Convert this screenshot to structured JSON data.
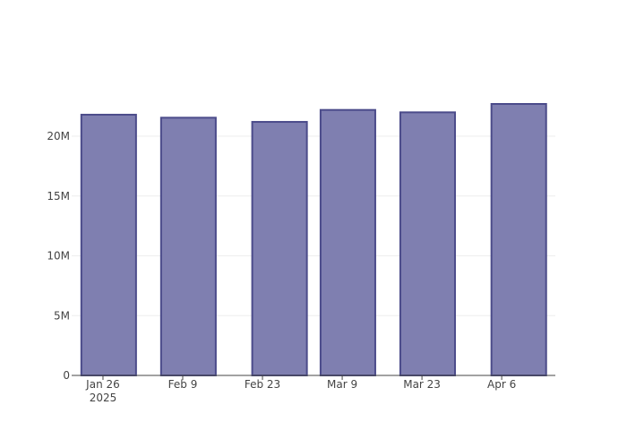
{
  "chart_data": {
    "type": "bar",
    "x": [
      "2025-01-27",
      "2025-02-10",
      "2025-02-26",
      "2025-03-10",
      "2025-03-24",
      "2025-04-09"
    ],
    "values": [
      21800000,
      21550000,
      21200000,
      22200000,
      22000000,
      22700000
    ],
    "color": "#7f7fb0",
    "line_color": "#4b4b8a",
    "xlim": [
      "2025-01-20T12:00:00",
      "2025-04-15T10:00:00"
    ],
    "xticks": [
      {
        "value": "2025-01-26",
        "label": [
          "Jan 26",
          "2025"
        ]
      },
      {
        "value": "2025-02-09",
        "label": [
          "Feb 9"
        ]
      },
      {
        "value": "2025-02-23",
        "label": [
          "Feb 23"
        ]
      },
      {
        "value": "2025-03-09",
        "label": [
          "Mar 9"
        ]
      },
      {
        "value": "2025-03-23",
        "label": [
          "Mar 23"
        ]
      },
      {
        "value": "2025-04-06",
        "label": [
          "Apr 6"
        ]
      }
    ],
    "ylim": [
      0,
      23900000
    ],
    "yticks": [
      0,
      {
        "value": 5000000,
        "label": "5M"
      },
      {
        "value": 10000000,
        "label": "10M"
      },
      {
        "value": 15000000,
        "label": "15M"
      },
      {
        "value": 20000000,
        "label": "20M"
      }
    ],
    "grid": true
  }
}
